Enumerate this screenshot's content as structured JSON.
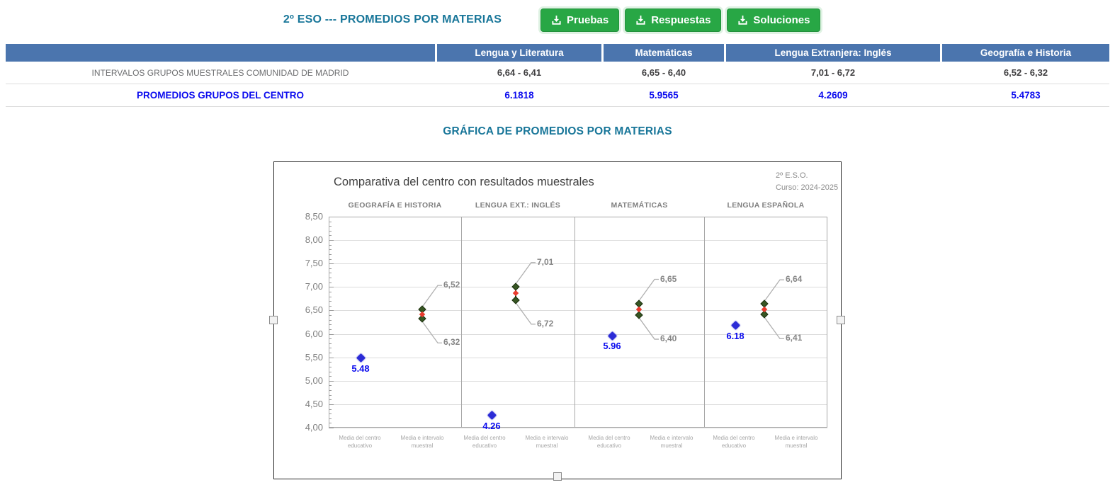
{
  "header": {
    "title": "2º ESO --- PROMEDIOS POR MATERIAS",
    "buttons": [
      {
        "label": "Pruebas",
        "icon": "download-icon"
      },
      {
        "label": "Respuestas",
        "icon": "download-icon"
      },
      {
        "label": "Soluciones",
        "icon": "download-icon"
      }
    ]
  },
  "table": {
    "header": [
      "",
      "Lengua y Literatura",
      "Matemáticas",
      "Lengua Extranjera: Inglés",
      "Geografía e Historia"
    ],
    "rows": [
      {
        "label": "INTERVALOS GRUPOS MUESTRALES COMUNIDAD DE MADRID",
        "values": [
          "6,64 - 6,41",
          "6,65 - 6,40",
          "7,01 - 6,72",
          "6,52 - 6,32"
        ]
      },
      {
        "label": "PROMEDIOS GRUPOS DEL CENTRO",
        "values": [
          "6.1818",
          "5.9565",
          "4.2609",
          "5.4783"
        ]
      }
    ]
  },
  "section": {
    "title": "GRÁFICA DE PROMEDIOS POR MATERIAS"
  },
  "chart_data": {
    "type": "scatter",
    "title": "Comparativa del centro con resultados muestrales",
    "annotation": [
      "2º E.S.O.",
      "Curso: 2024-2025"
    ],
    "ylim": [
      4.0,
      8.5
    ],
    "ytick_step": 0.5,
    "ytick_labels": [
      "8,50",
      "8,00",
      "7,50",
      "7,00",
      "6,50",
      "6,00",
      "5,50",
      "5,00",
      "4,50",
      "4,00"
    ],
    "grid": "horizontal",
    "categories": [
      "Media del centro educativo",
      "Media e intervalo muestral"
    ],
    "panels": [
      {
        "subject": "GEOGRAFÍA E HISTORIA",
        "center_mean": 5.48,
        "center_label": "5.48",
        "interval_high": 6.52,
        "interval_low": 6.32,
        "interval_high_label": "6,52",
        "interval_low_label": "6,32"
      },
      {
        "subject": "LENGUA EXT.: INGLÉS",
        "center_mean": 4.26,
        "center_label": "4.26",
        "interval_high": 7.01,
        "interval_low": 6.72,
        "interval_high_label": "7,01",
        "interval_low_label": "6,72"
      },
      {
        "subject": "MATEMÁTICAS",
        "center_mean": 5.96,
        "center_label": "5.96",
        "interval_high": 6.65,
        "interval_low": 6.4,
        "interval_high_label": "6,65",
        "interval_low_label": "6,40"
      },
      {
        "subject": "LENGUA ESPAÑOLA",
        "center_mean": 6.18,
        "center_label": "6.18",
        "interval_high": 6.64,
        "interval_low": 6.41,
        "interval_high_label": "6,64",
        "interval_low_label": "6,41"
      }
    ],
    "colors": {
      "center_marker": "#2b2bd6",
      "center_label": "#0a0aee",
      "interval_marker": "#375623",
      "interval_mid": "#ea3b2e",
      "callout_line": "#b0b0b0",
      "gridline": "#dcdcdc"
    }
  },
  "colors": {
    "heading": "#187699",
    "table_header_bg": "#4b75ae",
    "accent_value_blue": "#0b0bee",
    "button_green": "#28a745"
  }
}
